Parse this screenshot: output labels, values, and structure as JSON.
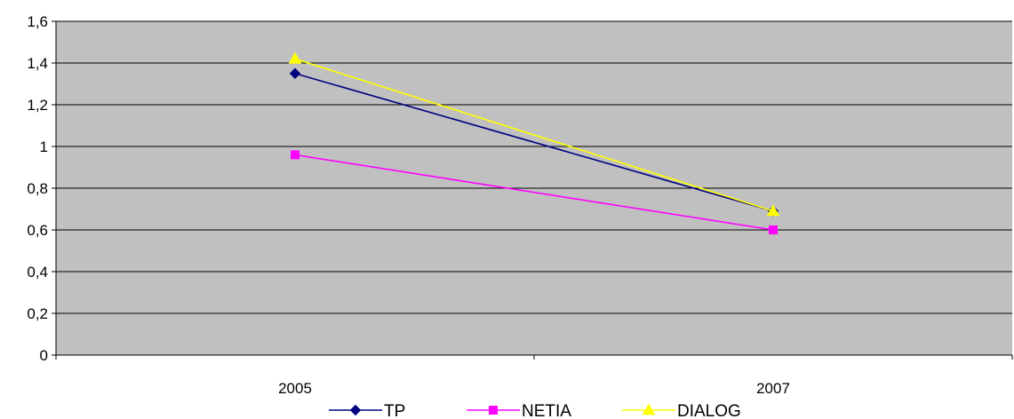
{
  "chart_data": {
    "type": "line",
    "title": "",
    "xlabel": "",
    "ylabel": "",
    "categories": [
      "2005",
      "2007"
    ],
    "ylim": [
      0,
      1.6
    ],
    "y_ticks": [
      "0",
      "0,2",
      "0,4",
      "0,6",
      "0,8",
      "1",
      "1,2",
      "1,4",
      "1,6"
    ],
    "y_tick_values": [
      0,
      0.2,
      0.4,
      0.6,
      0.8,
      1.0,
      1.2,
      1.4,
      1.6
    ],
    "grid": true,
    "legend_position": "bottom",
    "plot_background": "#C0C0C0",
    "series": [
      {
        "name": "TP",
        "values": [
          1.35,
          0.69
        ],
        "color": "#000080",
        "marker": "diamond"
      },
      {
        "name": "NETIA",
        "values": [
          0.96,
          0.6
        ],
        "color": "#FF00FF",
        "marker": "square"
      },
      {
        "name": "DIALOG",
        "values": [
          1.42,
          0.69
        ],
        "color": "#FFFF00",
        "marker": "triangle"
      }
    ]
  }
}
